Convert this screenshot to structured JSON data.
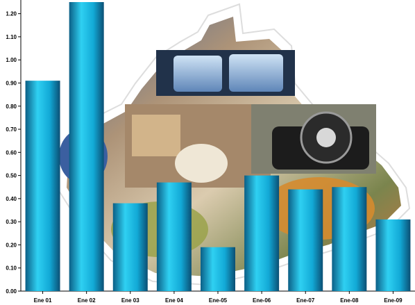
{
  "chart_data": {
    "type": "bar",
    "title": "",
    "xlabel": "",
    "ylabel": "",
    "categories": [
      "Ene 01",
      "Ene 02",
      "Ene 03",
      "Ene 04",
      "Ene-05",
      "Ene-06",
      "Ene-07",
      "Ene-08",
      "Ene-09"
    ],
    "values": [
      0.91,
      1.25,
      0.38,
      0.47,
      0.19,
      0.5,
      0.44,
      0.45,
      0.31
    ],
    "ylim": [
      0,
      1.25
    ],
    "yticks": [
      "0.00",
      "0.10",
      "0.20",
      "0.30",
      "0.40",
      "0.50",
      "0.60",
      "0.70",
      "0.80",
      "0.90",
      "1.00",
      "1.10",
      "1.20"
    ],
    "grid": false,
    "legend": "none",
    "colors": {
      "bar_light": "#2fd0f2",
      "bar_mid": "#12a9d6",
      "bar_dark": "#0b4f74",
      "axis": "#000000",
      "background_collage": "#8a6f58"
    }
  }
}
